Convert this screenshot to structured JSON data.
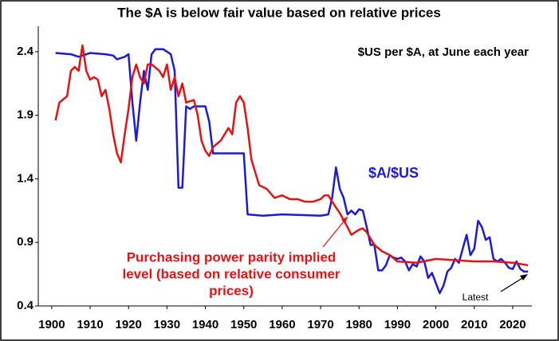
{
  "chart_data": {
    "type": "line",
    "title": "The $A is below fair value based on relative prices",
    "subtitle": "$US per $A, at June each year",
    "xlim": [
      1896.5,
      2025
    ],
    "xticks": [
      1900,
      1910,
      1920,
      1930,
      1940,
      1950,
      1960,
      1970,
      1980,
      1990,
      2000,
      2010,
      2020
    ],
    "ylim": [
      0.4,
      2.6
    ],
    "yticks": [
      0.4,
      0.9,
      1.4,
      1.9,
      2.4
    ],
    "series": [
      {
        "name": "$A/$US",
        "color": "#1a1adc",
        "x": [
          1901,
          1905,
          1907,
          1910,
          1914,
          1916,
          1917,
          1919,
          1920,
          1921,
          1922,
          1923,
          1924,
          1925,
          1926,
          1927,
          1929,
          1931,
          1932,
          1933,
          1934,
          1935,
          1936,
          1937,
          1940,
          1941,
          1942,
          1949,
          1950,
          1951,
          1955,
          1960,
          1970,
          1972,
          1973,
          1974,
          1975,
          1976,
          1977,
          1978,
          1979,
          1980,
          1981,
          1982,
          1983,
          1984,
          1985,
          1986,
          1987,
          1988,
          1989,
          1990,
          1991,
          1992,
          1993,
          1994,
          1995,
          1996,
          1997,
          1998,
          1999,
          2000,
          2001,
          2002,
          2003,
          2004,
          2005,
          2006,
          2007,
          2008,
          2009,
          2010,
          2011,
          2012,
          2013,
          2014,
          2015,
          2016,
          2017,
          2018,
          2019,
          2020,
          2021,
          2022,
          2023,
          2024
        ],
        "values": [
          2.39,
          2.38,
          2.36,
          2.39,
          2.38,
          2.37,
          2.34,
          2.36,
          2.38,
          2.0,
          1.7,
          2.0,
          2.25,
          2.1,
          2.38,
          2.42,
          2.42,
          2.38,
          2.25,
          1.33,
          1.33,
          1.97,
          1.95,
          1.97,
          1.97,
          1.85,
          1.6,
          1.6,
          1.6,
          1.12,
          1.11,
          1.12,
          1.11,
          1.12,
          1.25,
          1.49,
          1.32,
          1.25,
          1.12,
          1.15,
          1.12,
          1.16,
          1.15,
          1.02,
          0.88,
          0.88,
          0.68,
          0.68,
          0.72,
          0.8,
          0.78,
          0.77,
          0.78,
          0.75,
          0.68,
          0.73,
          0.71,
          0.79,
          0.75,
          0.62,
          0.66,
          0.58,
          0.5,
          0.56,
          0.67,
          0.7,
          0.77,
          0.74,
          0.85,
          0.96,
          0.8,
          0.85,
          1.07,
          1.02,
          0.92,
          0.94,
          0.77,
          0.75,
          0.77,
          0.74,
          0.7,
          0.69,
          0.75,
          0.69,
          0.67,
          0.67
        ]
      },
      {
        "name": "Purchasing power parity implied level (based on relative consumer prices)",
        "color": "#e81010",
        "x": [
          1901,
          1902,
          1904,
          1905,
          1906,
          1907,
          1908,
          1909,
          1910,
          1911,
          1912,
          1913,
          1914,
          1915,
          1916,
          1917,
          1918,
          1919,
          1920,
          1921,
          1922,
          1923,
          1924,
          1925,
          1926,
          1928,
          1929,
          1930,
          1931,
          1932,
          1933,
          1934,
          1935,
          1937,
          1938,
          1939,
          1940,
          1941,
          1942,
          1944,
          1946,
          1947,
          1948,
          1949,
          1950,
          1951,
          1952,
          1953,
          1954,
          1956,
          1958,
          1960,
          1962,
          1964,
          1966,
          1968,
          1970,
          1971,
          1972,
          1973,
          1975,
          1977,
          1978,
          1980,
          1981,
          1982,
          1984,
          1986,
          1988,
          1990,
          1995,
          2000,
          2005,
          2010,
          2015,
          2020,
          2024
        ],
        "values": [
          1.86,
          2.0,
          2.05,
          2.25,
          2.28,
          2.25,
          2.45,
          2.25,
          2.18,
          2.2,
          2.18,
          2.05,
          2.1,
          1.95,
          1.75,
          1.6,
          1.53,
          1.75,
          1.95,
          2.2,
          2.3,
          2.2,
          2.15,
          2.3,
          2.3,
          2.25,
          2.2,
          2.3,
          2.1,
          2.2,
          2.05,
          2.15,
          2.0,
          2.02,
          1.9,
          1.7,
          1.62,
          1.58,
          1.65,
          1.7,
          1.8,
          1.75,
          2.0,
          2.05,
          2.0,
          1.8,
          1.55,
          1.45,
          1.35,
          1.32,
          1.25,
          1.27,
          1.24,
          1.24,
          1.22,
          1.22,
          1.24,
          1.27,
          1.27,
          1.22,
          1.13,
          1.02,
          0.96,
          1.0,
          1.01,
          0.98,
          0.88,
          0.83,
          0.8,
          0.75,
          0.74,
          0.77,
          0.76,
          0.75,
          0.75,
          0.74,
          0.72
        ]
      }
    ],
    "series_labels": [
      [
        "$A/$US"
      ],
      [
        "Purchasing power parity implied",
        "level (based on relative consumer",
        "prices)"
      ]
    ],
    "annotation": "Latest"
  }
}
